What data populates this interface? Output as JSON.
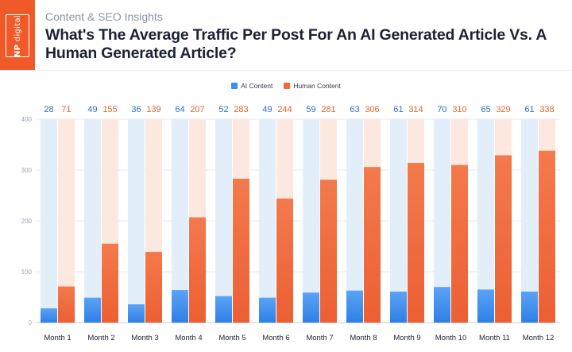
{
  "header": {
    "brand_lines": [
      "NP",
      "digital"
    ],
    "subtitle": "Content & SEO Insights",
    "title": "What's The Average Traffic Per Post For An AI Generated Article Vs. A Human Generated Article?"
  },
  "colors": {
    "brand": "#f05a28",
    "ai": "#3d8ef0",
    "human": "#ee6a3c",
    "ai_label": "#2c6fc4",
    "human_label": "#e0652f"
  },
  "chart_data": {
    "type": "bar",
    "categories": [
      "Month 1",
      "Month 2",
      "Month 3",
      "Month 4",
      "Month 5",
      "Month 6",
      "Month 7",
      "Month 8",
      "Month 9",
      "Month 10",
      "Month 11",
      "Month 12"
    ],
    "series": [
      {
        "name": "AI Content",
        "values": [
          28,
          49,
          36,
          64,
          52,
          49,
          59,
          63,
          61,
          70,
          65,
          61
        ]
      },
      {
        "name": "Human Content",
        "values": [
          71,
          155,
          139,
          207,
          283,
          244,
          281,
          306,
          314,
          310,
          329,
          338
        ]
      }
    ],
    "ylim": [
      0,
      400
    ],
    "yticks": [
      0,
      100,
      200,
      300,
      400
    ],
    "legend": "top-center",
    "grid": true,
    "data_labels": "top"
  }
}
